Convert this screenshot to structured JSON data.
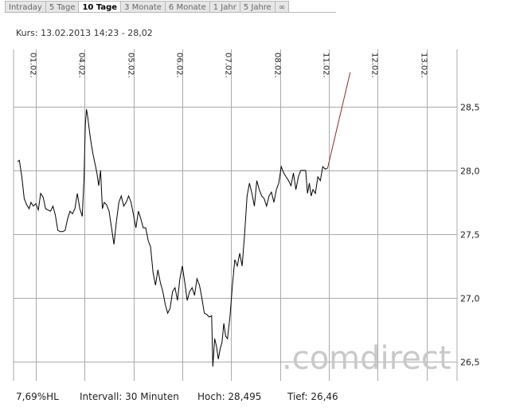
{
  "tabs": [
    {
      "label": "Intraday",
      "active": false
    },
    {
      "label": "5 Tage",
      "active": false
    },
    {
      "label": "10 Tage",
      "active": true
    },
    {
      "label": "3 Monate",
      "active": false
    },
    {
      "label": "6 Monate",
      "active": false
    },
    {
      "label": "1 Jahr",
      "active": false
    },
    {
      "label": "5 Jahre",
      "active": false
    },
    {
      "label": "∞",
      "active": false
    }
  ],
  "kurs_text": "Kurs: 13.02.2013 14:23 - 28,02",
  "watermark": ".comdirect",
  "footer": {
    "hl": "7,69%HL",
    "intervall": "Intervall: 30 Minuten",
    "hoch": "Hoch:  28,495",
    "tief": "Tief:   26,46"
  },
  "colors": {
    "price_line": "#000000",
    "forecast_line": "#8b2b2b",
    "grid": "#aaaaaa"
  },
  "chart_data": {
    "type": "line",
    "title": "",
    "xlabel": "",
    "ylabel": "",
    "ylim": [
      26.35,
      28.95
    ],
    "y_ticks": [
      26.5,
      27.0,
      27.5,
      28.0,
      28.5
    ],
    "y_tick_labels": [
      "26,5",
      "27,0",
      "27,5",
      "28,0",
      "28,5"
    ],
    "x_ticks": [
      {
        "label": "01.02.",
        "x": 3
      },
      {
        "label": "04.02.",
        "x": 11
      },
      {
        "label": "05.02.",
        "x": 19
      },
      {
        "label": "06.02.",
        "x": 27
      },
      {
        "label": "07.02.",
        "x": 35
      },
      {
        "label": "08.02.",
        "x": 43
      },
      {
        "label": "11.02.",
        "x": 51
      },
      {
        "label": "12.02.",
        "x": 59
      },
      {
        "label": "13.02.",
        "x": 67
      }
    ],
    "x_range": [
      0,
      72
    ],
    "series": [
      {
        "values": [
          [
            0.0,
            28.07
          ],
          [
            0.3,
            28.08
          ],
          [
            0.7,
            27.95
          ],
          [
            1.1,
            27.78
          ],
          [
            1.5,
            27.73
          ],
          [
            1.9,
            27.7
          ],
          [
            2.2,
            27.75
          ],
          [
            2.6,
            27.72
          ],
          [
            3.0,
            27.74
          ],
          [
            3.4,
            27.69
          ],
          [
            3.8,
            27.82
          ],
          [
            4.2,
            27.79
          ],
          [
            4.6,
            27.7
          ],
          [
            5.0,
            27.69
          ],
          [
            5.4,
            27.68
          ],
          [
            5.8,
            27.72
          ],
          [
            6.2,
            27.65
          ],
          [
            6.6,
            27.53
          ],
          [
            7.0,
            27.52
          ],
          [
            7.4,
            27.52
          ],
          [
            7.8,
            27.53
          ],
          [
            8.2,
            27.62
          ],
          [
            8.6,
            27.68
          ],
          [
            9.0,
            27.66
          ],
          [
            9.4,
            27.7
          ],
          [
            9.8,
            27.82
          ],
          [
            10.2,
            27.7
          ],
          [
            10.6,
            27.64
          ],
          [
            10.9,
            27.95
          ],
          [
            11.1,
            28.35
          ],
          [
            11.3,
            28.48
          ],
          [
            11.5,
            28.42
          ],
          [
            11.8,
            28.3
          ],
          [
            12.1,
            28.2
          ],
          [
            12.4,
            28.12
          ],
          [
            12.7,
            28.05
          ],
          [
            13.0,
            27.98
          ],
          [
            13.3,
            27.88
          ],
          [
            13.6,
            28.0
          ],
          [
            13.9,
            27.7
          ],
          [
            14.2,
            27.75
          ],
          [
            14.6,
            27.73
          ],
          [
            15.0,
            27.68
          ],
          [
            15.4,
            27.55
          ],
          [
            15.8,
            27.42
          ],
          [
            16.2,
            27.6
          ],
          [
            16.6,
            27.75
          ],
          [
            17.0,
            27.8
          ],
          [
            17.4,
            27.72
          ],
          [
            17.8,
            27.75
          ],
          [
            18.2,
            27.8
          ],
          [
            18.6,
            27.75
          ],
          [
            19.0,
            27.65
          ],
          [
            19.4,
            27.55
          ],
          [
            19.8,
            27.68
          ],
          [
            20.2,
            27.62
          ],
          [
            20.6,
            27.55
          ],
          [
            21.0,
            27.55
          ],
          [
            21.4,
            27.45
          ],
          [
            21.8,
            27.4
          ],
          [
            22.2,
            27.2
          ],
          [
            22.6,
            27.1
          ],
          [
            23.0,
            27.22
          ],
          [
            23.4,
            27.12
          ],
          [
            23.8,
            27.05
          ],
          [
            24.2,
            26.95
          ],
          [
            24.6,
            26.88
          ],
          [
            25.0,
            26.92
          ],
          [
            25.4,
            27.05
          ],
          [
            25.8,
            27.08
          ],
          [
            26.2,
            26.98
          ],
          [
            26.6,
            27.15
          ],
          [
            27.0,
            27.25
          ],
          [
            27.4,
            27.12
          ],
          [
            27.8,
            26.98
          ],
          [
            28.2,
            27.05
          ],
          [
            28.6,
            27.08
          ],
          [
            29.0,
            27.02
          ],
          [
            29.4,
            27.15
          ],
          [
            29.8,
            27.1
          ],
          [
            30.2,
            27.0
          ],
          [
            30.6,
            26.88
          ],
          [
            31.0,
            26.87
          ],
          [
            31.4,
            26.85
          ],
          [
            31.8,
            26.86
          ],
          [
            32.0,
            26.46
          ],
          [
            32.3,
            26.68
          ],
          [
            32.6,
            26.62
          ],
          [
            32.9,
            26.52
          ],
          [
            33.2,
            26.6
          ],
          [
            33.5,
            26.65
          ],
          [
            33.8,
            26.8
          ],
          [
            34.1,
            26.7
          ],
          [
            34.4,
            26.68
          ],
          [
            34.8,
            26.85
          ],
          [
            35.2,
            27.1
          ],
          [
            35.6,
            27.3
          ],
          [
            36.0,
            27.25
          ],
          [
            36.4,
            27.35
          ],
          [
            36.8,
            27.25
          ],
          [
            37.2,
            27.5
          ],
          [
            37.6,
            27.8
          ],
          [
            38.0,
            27.9
          ],
          [
            38.4,
            27.82
          ],
          [
            38.8,
            27.72
          ],
          [
            39.2,
            27.92
          ],
          [
            39.6,
            27.85
          ],
          [
            40.0,
            27.8
          ],
          [
            40.4,
            27.78
          ],
          [
            40.8,
            27.72
          ],
          [
            41.2,
            27.8
          ],
          [
            41.6,
            27.83
          ],
          [
            42.0,
            27.75
          ],
          [
            42.4,
            27.85
          ],
          [
            42.8,
            27.9
          ],
          [
            43.2,
            28.03
          ],
          [
            43.6,
            27.98
          ],
          [
            44.0,
            27.95
          ],
          [
            44.4,
            27.92
          ],
          [
            44.8,
            27.88
          ],
          [
            45.2,
            27.98
          ],
          [
            45.6,
            27.85
          ],
          [
            46.0,
            27.95
          ],
          [
            46.4,
            28.0
          ],
          [
            46.8,
            28.0
          ],
          [
            47.2,
            28.0
          ],
          [
            47.5,
            27.82
          ],
          [
            47.8,
            27.9
          ],
          [
            48.1,
            27.8
          ],
          [
            48.4,
            27.85
          ],
          [
            48.8,
            27.82
          ],
          [
            49.2,
            27.95
          ],
          [
            49.6,
            27.92
          ],
          [
            50.0,
            28.03
          ],
          [
            50.4,
            28.01
          ],
          [
            50.8,
            28.02
          ]
        ]
      },
      {
        "values": [
          [
            50.8,
            28.02
          ],
          [
            54.5,
            28.77
          ]
        ]
      }
    ]
  }
}
